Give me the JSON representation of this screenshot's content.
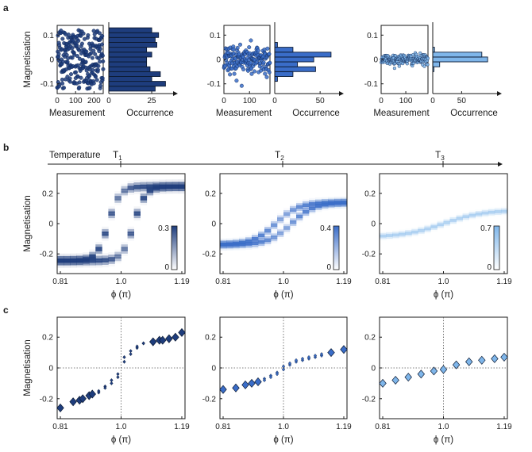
{
  "panel_letters": [
    "a",
    "b",
    "c"
  ],
  "colors": {
    "T1": "#1e3d7d",
    "T2": "#3a6dc8",
    "T3": "#7fb6ea",
    "axis": "#1a1a1a"
  },
  "temperature": {
    "label": "Temperature",
    "markers": [
      "T",
      "T",
      "T"
    ],
    "subscripts": [
      "1",
      "2",
      "3"
    ]
  },
  "chart_data": [
    {
      "panel": "a",
      "type": "scatter+histogram",
      "groups": [
        {
          "temperature": "T1",
          "scatter": {
            "xlabel": "Measurement",
            "ylabel": "Magnetisation",
            "xlim": [
              0,
              250
            ],
            "ylim": [
              -0.14,
              0.14
            ],
            "xticks": [
              "0",
              "100",
              "200"
            ],
            "yticks": [
              "-0.1",
              "0",
              "0.1"
            ],
            "n_points": 250,
            "spread": 0.12
          },
          "histogram": {
            "xlabel": "Occurrence",
            "xlim": [
              0,
              37
            ],
            "xticks": [
              "0",
              "25"
            ],
            "bins": [
              -0.12,
              -0.1,
              -0.08,
              -0.06,
              -0.04,
              -0.02,
              0,
              0.02,
              0.04,
              0.06,
              0.08,
              0.1,
              0.12
            ],
            "counts": [
              27,
              33,
              25,
              30,
              24,
              22,
              22,
              25,
              22,
              28,
              27,
              29,
              25
            ]
          }
        },
        {
          "temperature": "T2",
          "scatter": {
            "xlabel": "Measurement",
            "xlim": [
              0,
              180
            ],
            "ylim": [
              -0.14,
              0.14
            ],
            "xticks": [
              "0",
              "100"
            ],
            "yticks": [
              "-0.1",
              "0",
              "0.1"
            ],
            "n_points": 180,
            "spread": 0.045
          },
          "histogram": {
            "xlabel": "Occurrence",
            "xlim": [
              0,
              70
            ],
            "xticks": [
              "0",
              "50"
            ],
            "bins": [
              -0.08,
              -0.06,
              -0.04,
              -0.02,
              0,
              0.02,
              0.04,
              0.06
            ],
            "counts": [
              3,
              20,
              45,
              25,
              43,
              62,
              20,
              3
            ]
          }
        },
        {
          "temperature": "T3",
          "scatter": {
            "xlabel": "Measurement",
            "xlim": [
              0,
              190
            ],
            "ylim": [
              -0.14,
              0.14
            ],
            "xticks": [
              "0",
              "100"
            ],
            "yticks": [
              "-0.1",
              "0",
              "0.1"
            ],
            "n_points": 190,
            "spread": 0.015
          },
          "histogram": {
            "xlabel": "Occurrence",
            "xlim": [
              0,
              110
            ],
            "xticks": [
              "0",
              "50"
            ],
            "bins": [
              -0.04,
              -0.02,
              0,
              0.02,
              0.04
            ],
            "counts": [
              2,
              12,
              95,
              85,
              3
            ]
          }
        }
      ]
    },
    {
      "panel": "b",
      "type": "heatmap",
      "xlabel": "ϕ (π)",
      "ylabel": "Magnetisation",
      "xlim": [
        0.8,
        1.2
      ],
      "ylim": [
        -0.33,
        0.33
      ],
      "xticks": [
        "0.81",
        "1.0",
        "1.19"
      ],
      "yticks": [
        "-0.2",
        "0",
        "0.2"
      ],
      "colorbars": [
        {
          "min": "0",
          "max": "0.3"
        },
        {
          "min": "0",
          "max": "0.4"
        },
        {
          "min": "0",
          "max": "0.7"
        }
      ],
      "groups": [
        {
          "temperature": "T1",
          "amplitude": 0.245,
          "steepness": 28,
          "offset": 0.04,
          "hysteresis": true,
          "band": 0.018
        },
        {
          "temperature": "T2",
          "amplitude": 0.14,
          "steepness": 14,
          "offset": 0.025,
          "hysteresis": true,
          "band": 0.015
        },
        {
          "temperature": "T3",
          "amplitude": 0.09,
          "steepness": 8,
          "offset": 0,
          "hysteresis": false,
          "band": 0.012
        }
      ]
    },
    {
      "panel": "c",
      "type": "scatter",
      "xlabel": "ϕ (π)",
      "ylabel": "Magnetisation",
      "xlim": [
        0.8,
        1.2
      ],
      "ylim": [
        -0.33,
        0.33
      ],
      "xticks": [
        "0.81",
        "1.0",
        "1.19"
      ],
      "yticks": [
        "-0.2",
        "0",
        "0.2"
      ],
      "groups": [
        {
          "temperature": "T1",
          "series": [
            {
              "x": [
                0.81,
                0.85,
                0.87,
                0.88,
                0.9,
                0.91,
                1.1,
                1.12,
                1.13,
                1.15,
                1.17,
                1.19
              ],
              "y": [
                -0.26,
                -0.22,
                -0.21,
                -0.2,
                -0.18,
                -0.17,
                0.17,
                0.18,
                0.18,
                0.19,
                0.2,
                0.23
              ],
              "size": "large"
            },
            {
              "x": [
                0.93,
                0.95,
                0.97,
                0.99,
                1.01,
                1.03,
                1.05,
                1.07
              ],
              "y": [
                -0.16,
                -0.12,
                -0.08,
                -0.04,
                0.04,
                0.09,
                0.13,
                0.16
              ],
              "size": "small"
            },
            {
              "x": [
                0.93,
                0.95,
                0.97,
                0.99,
                1.01,
                1.03,
                1.05,
                1.07
              ],
              "y": [
                -0.15,
                -0.13,
                -0.1,
                -0.06,
                0.07,
                0.11,
                0.14,
                0.16
              ],
              "size": "small"
            }
          ]
        },
        {
          "temperature": "T2",
          "series": [
            {
              "x": [
                0.81,
                0.85,
                0.88,
                0.9,
                0.92,
                1.15,
                1.19
              ],
              "y": [
                -0.14,
                -0.13,
                -0.11,
                -0.1,
                -0.09,
                0.1,
                0.12
              ],
              "size": "large"
            },
            {
              "x": [
                0.94,
                0.96,
                0.98,
                1.0,
                1.02,
                1.04,
                1.06,
                1.08,
                1.1,
                1.12
              ],
              "y": [
                -0.07,
                -0.05,
                -0.03,
                -0.01,
                0.02,
                0.04,
                0.05,
                0.06,
                0.07,
                0.08
              ],
              "size": "small"
            },
            {
              "x": [
                0.94,
                0.96,
                0.98,
                1.0,
                1.02,
                1.04,
                1.06,
                1.08,
                1.1,
                1.12
              ],
              "y": [
                -0.08,
                -0.06,
                -0.04,
                0.01,
                0.03,
                0.05,
                0.06,
                0.07,
                0.08,
                0.09
              ],
              "size": "small"
            }
          ]
        },
        {
          "temperature": "T3",
          "series": [
            {
              "x": [
                0.81,
                0.85,
                0.89,
                0.93,
                0.97,
                1.0,
                1.04,
                1.08,
                1.12,
                1.16,
                1.19
              ],
              "y": [
                -0.1,
                -0.08,
                -0.06,
                -0.04,
                -0.02,
                -0.01,
                0.02,
                0.04,
                0.05,
                0.06,
                0.07
              ],
              "size": "large"
            }
          ]
        }
      ]
    }
  ]
}
